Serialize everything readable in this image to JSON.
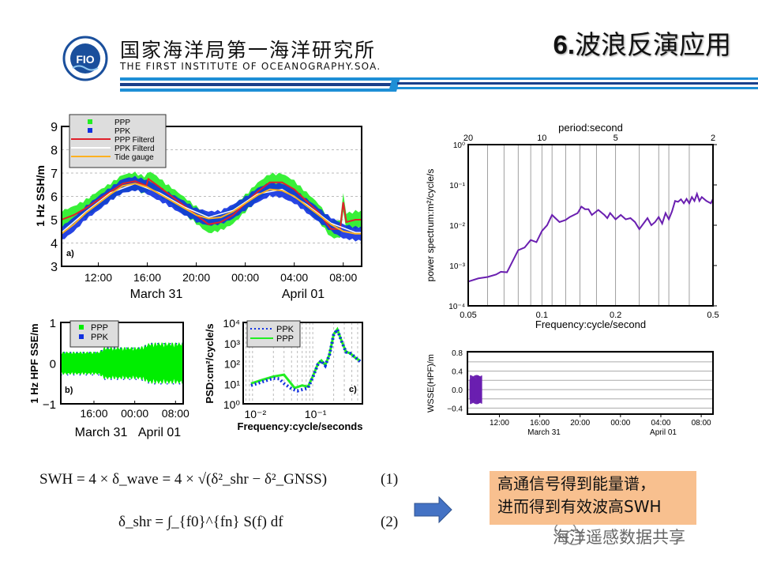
{
  "header": {
    "org_cn": "国家海洋局第一海洋研究所",
    "org_en": "THE FIRST INSTITUTE OF OCEANOGRAPHY.SOA.",
    "logo_text": "FIO",
    "title_num": "6.",
    "title_text": "波浪反演应用",
    "stripe_colors": [
      "#1e8fd6",
      "#1a3f8a"
    ]
  },
  "equations": {
    "eq1": "SWH = 4 × δ_wave = 4 × √(δ²_shr − δ²_GNSS)",
    "eq1_num": "(1)",
    "eq2": "δ_shr = ∫_{f0}^{fn} S(f) df",
    "eq2_num": "(2)"
  },
  "note": {
    "line1": "高通信号得到能量谱，",
    "line2": "进而得到有效波高SWH",
    "bg": "#f8c08f"
  },
  "arrow": {
    "icon": "right-arrow-icon",
    "color": "#4472c4"
  },
  "watermark": {
    "icon": "wechat-icon",
    "text": "海洋遥感数据共享"
  },
  "chart_data": [
    {
      "id": "a",
      "type": "line",
      "panel_label": "a)",
      "ylabel": "1 Hz SSH/m",
      "ylim": [
        3,
        9
      ],
      "yticks": [
        3,
        4,
        5,
        6,
        7,
        8,
        9
      ],
      "xlim": [
        "03-31 09:00",
        "04-01 09:30"
      ],
      "xticks": [
        {
          "t": "03-31 12:00",
          "label": "12:00"
        },
        {
          "t": "03-31 16:00",
          "label": "16:00"
        },
        {
          "t": "03-31 20:00",
          "label": "20:00"
        },
        {
          "t": "04-01 00:00",
          "label": "00:00"
        },
        {
          "t": "04-01 04:00",
          "label": "04:00"
        },
        {
          "t": "04-01 08:00",
          "label": "08:00"
        }
      ],
      "date_labels": [
        "March 31",
        "April 01"
      ],
      "grid": "horizontal dashed",
      "legend": "top-left",
      "series": [
        {
          "name": "PPP",
          "kind": "scatter-band",
          "color": "#22ee22",
          "base": "PPP Filterd",
          "spread": 0.35
        },
        {
          "name": "PPK",
          "kind": "scatter-band",
          "color": "#1030e0",
          "base": "Tide gauge",
          "spread": 0.28
        },
        {
          "name": "PPP Filterd",
          "kind": "line",
          "color": "#e0202a",
          "x": [
            "03-31 09:00",
            "03-31 10:00",
            "03-31 11:00",
            "03-31 12:00",
            "03-31 13:00",
            "03-31 14:00",
            "03-31 15:00",
            "03-31 15:55",
            "03-31 16:05",
            "03-31 17:00",
            "03-31 18:00",
            "03-31 19:00",
            "03-31 20:00",
            "03-31 21:00",
            "03-31 22:00",
            "03-31 23:00",
            "04-01 00:00",
            "04-01 01:00",
            "04-01 02:00",
            "04-01 03:00",
            "04-01 04:00",
            "04-01 05:00",
            "04-01 06:00",
            "04-01 07:00",
            "04-01 07:45",
            "04-01 08:00",
            "04-01 08:15",
            "04-01 09:00",
            "04-01 09:30"
          ],
          "y": [
            5.0,
            5.2,
            5.5,
            5.85,
            6.2,
            6.55,
            6.65,
            6.45,
            6.75,
            6.4,
            6.0,
            5.6,
            5.2,
            4.8,
            4.9,
            5.2,
            5.7,
            6.2,
            6.6,
            6.6,
            6.3,
            5.8,
            5.3,
            4.6,
            4.6,
            5.75,
            4.9,
            5.0,
            5.0
          ]
        },
        {
          "name": "PPK Filterd",
          "kind": "line",
          "color": "#ffffff",
          "x": [
            "03-31 09:00",
            "03-31 11:00",
            "03-31 13:00",
            "03-31 15:00",
            "03-31 17:00",
            "03-31 19:00",
            "03-31 21:00",
            "03-31 23:00",
            "04-01 01:00",
            "04-01 03:00",
            "04-01 05:00",
            "04-01 07:00",
            "04-01 09:00",
            "04-01 09:30"
          ],
          "y": [
            4.45,
            5.35,
            6.15,
            6.55,
            6.15,
            5.55,
            5.1,
            5.4,
            6.1,
            6.3,
            5.65,
            4.85,
            4.45,
            4.45
          ]
        },
        {
          "name": "Tide gauge",
          "kind": "line",
          "color": "#ffb020",
          "x": [
            "03-31 09:00",
            "03-31 10:00",
            "03-31 11:00",
            "03-31 12:00",
            "03-31 13:00",
            "03-31 14:00",
            "03-31 15:00",
            "03-31 16:00",
            "03-31 17:00",
            "03-31 18:00",
            "03-31 19:00",
            "03-31 20:00",
            "03-31 21:00",
            "03-31 22:00",
            "03-31 23:00",
            "04-01 00:00",
            "04-01 01:00",
            "04-01 02:00",
            "04-01 03:00",
            "04-01 04:00",
            "04-01 05:00",
            "04-01 06:00",
            "04-01 07:00",
            "04-01 08:00",
            "04-01 09:00",
            "04-01 09:30"
          ],
          "y": [
            4.4,
            4.8,
            5.3,
            5.7,
            6.1,
            6.45,
            6.55,
            6.4,
            6.1,
            5.8,
            5.5,
            5.2,
            5.05,
            5.1,
            5.35,
            5.7,
            6.05,
            6.3,
            6.25,
            6.0,
            5.6,
            5.2,
            4.8,
            4.5,
            4.4,
            4.4
          ]
        }
      ]
    },
    {
      "id": "b",
      "type": "scatter",
      "panel_label": "b)",
      "ylabel": "1 Hz HPF SSE/m",
      "ylim": [
        -1,
        1
      ],
      "yticks": [
        -1,
        0,
        1
      ],
      "xlim": [
        "03-31 09:30",
        "04-01 09:30"
      ],
      "xticks": [
        {
          "t": "03-31 16:00",
          "label": "16:00"
        },
        {
          "t": "04-01 00:00",
          "label": "00:00"
        },
        {
          "t": "04-01 08:00",
          "label": "08:00"
        }
      ],
      "date_labels": [
        "March 31",
        "April 01"
      ],
      "legend": "top-left",
      "series": [
        {
          "name": "PPP",
          "color": "#00ee00",
          "x": [
            "03-31 09:30",
            "03-31 17:00",
            "03-31 18:00",
            "04-01 01:00",
            "04-01 03:00",
            "04-01 09:30"
          ],
          "amplitude": [
            0.25,
            0.25,
            0.35,
            0.35,
            0.45,
            0.45
          ]
        },
        {
          "name": "PPK",
          "color": "#1030e0"
        }
      ]
    },
    {
      "id": "c",
      "type": "line",
      "panel_label": "c)",
      "xlabel": "Frequency:cycle/seconds",
      "ylabel": "PSD:cm²/cycle/s",
      "xscale": "log",
      "yscale": "log",
      "xlim": [
        0.0063,
        0.6
      ],
      "ylim": [
        1,
        10000
      ],
      "xticks": [
        {
          "v": 0.01,
          "label": "10⁻²"
        },
        {
          "v": 0.1,
          "label": "10⁻¹"
        }
      ],
      "yticks": [
        {
          "v": 1,
          "label": "10⁰"
        },
        {
          "v": 10,
          "label": "10¹"
        },
        {
          "v": 100,
          "label": "10²"
        },
        {
          "v": 1000,
          "label": "10³"
        },
        {
          "v": 10000,
          "label": "10⁴"
        }
      ],
      "grid": "vertical dashed",
      "legend": "top-left",
      "series": [
        {
          "name": "PPK",
          "style": "dotted",
          "color": "#1030e0",
          "x": [
            0.0085,
            0.013,
            0.02,
            0.025,
            0.03,
            0.04,
            0.05,
            0.06,
            0.075,
            0.09,
            0.11,
            0.125,
            0.145,
            0.17,
            0.2,
            0.23,
            0.27,
            0.32,
            0.38,
            0.45,
            0.55
          ],
          "y": [
            8,
            12,
            18,
            17,
            10,
            5.5,
            4.3,
            5,
            6,
            20,
            90,
            130,
            75,
            250,
            2500,
            4500,
            1200,
            350,
            300,
            200,
            120
          ]
        },
        {
          "name": "PPP",
          "style": "solid",
          "color": "#22ee22",
          "x": [
            0.0085,
            0.013,
            0.02,
            0.03,
            0.045,
            0.06,
            0.075,
            0.09,
            0.11,
            0.125,
            0.145,
            0.17,
            0.2,
            0.23,
            0.27,
            0.32,
            0.38,
            0.45,
            0.55
          ],
          "y": [
            10,
            15,
            22,
            27,
            6,
            8,
            7,
            22,
            95,
            135,
            80,
            260,
            2600,
            4600,
            1250,
            360,
            300,
            190,
            130
          ]
        }
      ]
    },
    {
      "id": "power-spectrum",
      "type": "line",
      "title": "period:second",
      "xlabel": "Frequency:cycle/second",
      "ylabel": "power spectrum:m²/cycle/s",
      "xscale": "log",
      "yscale": "log",
      "xlim": [
        0.05,
        0.5
      ],
      "ylim": [
        0.0001,
        1
      ],
      "xticks": [
        {
          "v": 0.05,
          "label": "0.05"
        },
        {
          "v": 0.1,
          "label": "0.1"
        },
        {
          "v": 0.2,
          "label": "0.2"
        },
        {
          "v": 0.5,
          "label": "0.5"
        }
      ],
      "top_ticks": [
        {
          "v": 20,
          "label": "20"
        },
        {
          "v": 10,
          "label": "10"
        },
        {
          "v": 5,
          "label": "5"
        },
        {
          "v": 2,
          "label": "2"
        }
      ],
      "yticks": [
        {
          "v": 0.0001,
          "label": "10⁻⁴"
        },
        {
          "v": 0.001,
          "label": "10⁻³"
        },
        {
          "v": 0.01,
          "label": "10⁻²"
        },
        {
          "v": 0.1,
          "label": "10⁻¹"
        },
        {
          "v": 1,
          "label": "10⁰"
        }
      ],
      "grid": "vertical",
      "grid_x": [
        0.06,
        0.07,
        0.08,
        0.09,
        0.1,
        0.11,
        0.125,
        0.143,
        0.167,
        0.2,
        0.25,
        0.3,
        0.33,
        0.4
      ],
      "series": [
        {
          "color": "#6a1fb0",
          "x": [
            0.05,
            0.055,
            0.06,
            0.065,
            0.068,
            0.072,
            0.08,
            0.085,
            0.09,
            0.095,
            0.1,
            0.105,
            0.11,
            0.118,
            0.125,
            0.13,
            0.14,
            0.145,
            0.15,
            0.155,
            0.16,
            0.17,
            0.18,
            0.185,
            0.19,
            0.2,
            0.21,
            0.22,
            0.23,
            0.24,
            0.25,
            0.26,
            0.27,
            0.28,
            0.29,
            0.3,
            0.31,
            0.32,
            0.33,
            0.34,
            0.35,
            0.36,
            0.37,
            0.38,
            0.39,
            0.4,
            0.41,
            0.42,
            0.43,
            0.44,
            0.45,
            0.47,
            0.49,
            0.5
          ],
          "y": [
            0.0004,
            0.00048,
            0.00052,
            0.0006,
            0.0007,
            0.00068,
            0.0024,
            0.0028,
            0.0043,
            0.0038,
            0.0072,
            0.01,
            0.018,
            0.012,
            0.0135,
            0.016,
            0.02,
            0.029,
            0.025,
            0.025,
            0.018,
            0.024,
            0.018,
            0.015,
            0.02,
            0.014,
            0.018,
            0.014,
            0.015,
            0.012,
            0.008,
            0.011,
            0.015,
            0.01,
            0.012,
            0.016,
            0.011,
            0.02,
            0.014,
            0.022,
            0.04,
            0.038,
            0.044,
            0.035,
            0.045,
            0.035,
            0.05,
            0.04,
            0.06,
            0.04,
            0.05,
            0.04,
            0.035,
            0.045
          ]
        }
      ]
    },
    {
      "id": "wsse",
      "type": "scatter",
      "ylabel": "WSSE(HPF)/m",
      "ylim": [
        -0.53,
        0.82
      ],
      "yticks": [
        {
          "v": 0.8,
          "label": "0.8"
        },
        {
          "v": 0.4,
          "label": "0.4"
        },
        {
          "v": 0,
          "label": "0.0"
        },
        {
          "v": -0.4,
          "label": "−0.4"
        }
      ],
      "xlim": [
        "03-31 08:50",
        "04-01 09:10"
      ],
      "xticks": [
        {
          "t": "03-31 12:00",
          "label": "12:00"
        },
        {
          "t": "03-31 16:00",
          "label": "16:00"
        },
        {
          "t": "03-31 20:00",
          "label": "20:00"
        },
        {
          "t": "04-01 00:00",
          "label": "00:00"
        },
        {
          "t": "04-01 04:00",
          "label": "04:00"
        },
        {
          "t": "04-01 08:00",
          "label": "08:00"
        }
      ],
      "date_labels": [
        "March 31",
        "April 01"
      ],
      "grid": "horizontal",
      "series": [
        {
          "color": "#6a1fb0",
          "x_range": [
            "03-31 09:05",
            "03-31 10:15"
          ],
          "amplitude": 0.3
        }
      ]
    }
  ]
}
